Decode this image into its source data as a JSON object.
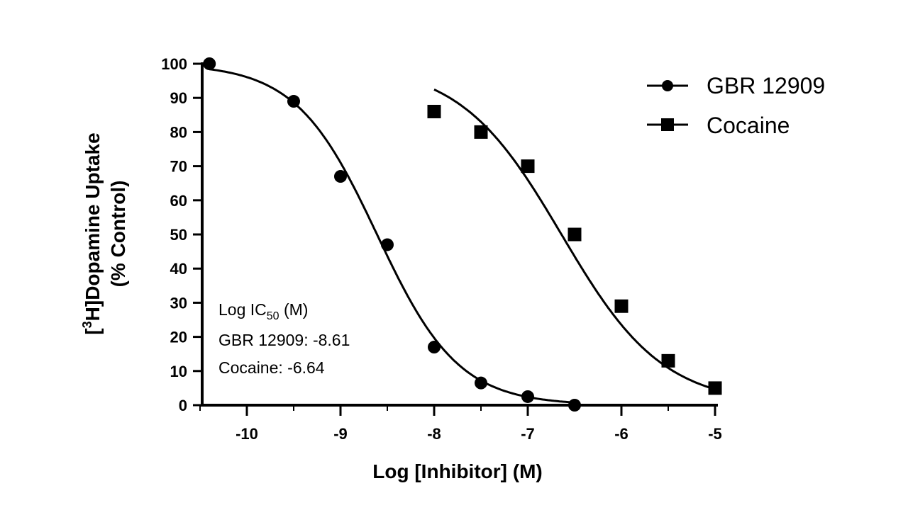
{
  "chart_data": {
    "type": "scatter",
    "xlabel": "Log [Inhibitor] (M)",
    "ylabel": {
      "pre": "[",
      "sup": "3",
      "main": "H]Dopamine Uptake",
      "line2": "(% Control)"
    },
    "xlim": [
      -10.5,
      -5
    ],
    "ylim": [
      0,
      100
    ],
    "xticks": [
      -10,
      -9,
      -8,
      -7,
      -6,
      -5
    ],
    "xtick_labels": [
      "-10",
      "-9",
      "-8",
      "-7",
      "-6",
      "-5"
    ],
    "yticks": [
      0,
      10,
      20,
      30,
      40,
      50,
      60,
      70,
      80,
      90,
      100
    ],
    "ytick_labels": [
      "0",
      "10",
      "20",
      "30",
      "40",
      "50",
      "60",
      "70",
      "80",
      "90",
      "100"
    ],
    "grid": false,
    "legend_position": "top-right",
    "series": [
      {
        "name": "GBR 12909",
        "marker": "circle",
        "x": [
          -10.4,
          -9.5,
          -9.0,
          -8.5,
          -8.0,
          -7.5,
          -7.0,
          -6.5
        ],
        "y": [
          100,
          89,
          67,
          47,
          17,
          6.5,
          2.5,
          0
        ],
        "fit": {
          "top": 100,
          "bottom": 0,
          "logIC50": -8.61,
          "hill": -1,
          "x_start": -10.4,
          "x_end": -6.5
        }
      },
      {
        "name": "Cocaine",
        "marker": "square",
        "x": [
          -8.0,
          -7.5,
          -7.0,
          -6.5,
          -6.0,
          -5.5,
          -5.0
        ],
        "y": [
          86,
          80,
          70,
          50,
          29,
          13,
          5
        ],
        "fit": {
          "top": 100,
          "bottom": 0,
          "logIC50": -6.64,
          "hill": -0.8,
          "x_start": -8.0,
          "x_end": -5.0
        }
      }
    ],
    "annotation": {
      "line1_pre": "Log IC",
      "line1_sub": "50",
      "line1_post": " (M)",
      "line2": "GBR 12909: -8.61",
      "line3": "Cocaine: -6.64"
    }
  }
}
